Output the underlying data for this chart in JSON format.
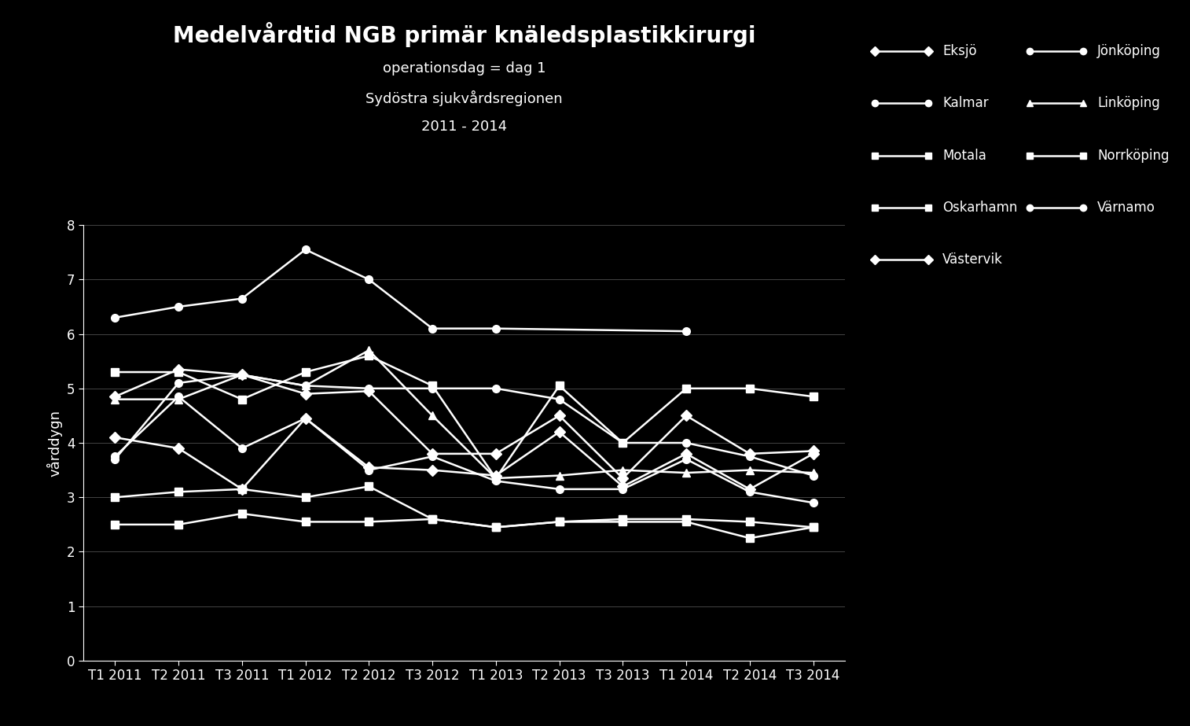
{
  "title": "Medelvårdtid NGB primär knäledsplastikkirurgi",
  "subtitle1": "operationsdag = dag 1",
  "subtitle2": "Sydöstra sjukvårdsregionen",
  "subtitle3": "2011 - 2014",
  "ylabel": "vårddygn",
  "background_color": "#000000",
  "text_color": "#ffffff",
  "x_labels": [
    "T1 2011",
    "T2 2011",
    "T3 2011",
    "T1 2012",
    "T2 2012",
    "T3 2012",
    "T1 2013",
    "T2 2013",
    "T3 2013",
    "T1 2014",
    "T2 2014",
    "T3 2014"
  ],
  "ylim": [
    0,
    8
  ],
  "yticks": [
    0,
    1,
    2,
    3,
    4,
    5,
    6,
    7,
    8
  ],
  "series": [
    {
      "name": "Eksjö",
      "values": [
        4.1,
        3.9,
        3.15,
        4.45,
        3.55,
        3.5,
        3.4,
        4.2,
        3.2,
        3.8,
        3.15,
        3.8
      ],
      "marker": "D"
    },
    {
      "name": "Jönköping",
      "values": [
        6.3,
        6.5,
        6.65,
        7.55,
        7.0,
        6.1,
        6.1,
        null,
        null,
        6.05,
        null,
        null
      ],
      "marker": "o"
    },
    {
      "name": "Kalmar",
      "values": [
        3.7,
        5.1,
        5.25,
        5.05,
        5.0,
        5.0,
        5.0,
        4.8,
        4.0,
        4.0,
        3.75,
        3.4
      ],
      "marker": "o"
    },
    {
      "name": "Linköping",
      "values": [
        4.8,
        4.8,
        5.25,
        5.05,
        5.7,
        4.5,
        3.35,
        3.4,
        3.5,
        3.45,
        3.5,
        3.45
      ],
      "marker": "^"
    },
    {
      "name": "Motala",
      "values": [
        2.5,
        2.5,
        2.7,
        2.55,
        2.55,
        2.6,
        2.45,
        2.55,
        2.55,
        2.55,
        2.25,
        2.45
      ],
      "marker": "s"
    },
    {
      "name": "Norrköping",
      "values": [
        5.3,
        5.3,
        4.8,
        5.3,
        5.6,
        5.05,
        3.35,
        5.05,
        4.0,
        5.0,
        5.0,
        4.85
      ],
      "marker": "s"
    },
    {
      "name": "Oskarhamn",
      "values": [
        3.0,
        3.1,
        3.15,
        3.0,
        3.2,
        2.6,
        2.45,
        2.55,
        2.6,
        2.6,
        2.55,
        2.45
      ],
      "marker": "s"
    },
    {
      "name": "Värnamo",
      "values": [
        3.75,
        4.85,
        3.9,
        4.45,
        3.5,
        3.75,
        3.3,
        3.15,
        3.15,
        3.7,
        3.1,
        2.9
      ],
      "marker": "o"
    },
    {
      "name": "Västervik",
      "values": [
        4.85,
        5.35,
        5.25,
        4.9,
        4.95,
        3.8,
        3.8,
        4.5,
        3.35,
        4.5,
        3.8,
        3.85
      ],
      "marker": "D"
    }
  ],
  "legend_order": [
    "Eksjö",
    "Jönköping",
    "Kalmar",
    "Linköping",
    "Motala",
    "Norrköping",
    "Oskarhamn",
    "Värnamo",
    "Västervik"
  ],
  "legend_ncol": 2,
  "title_fontsize": 20,
  "subtitle_fontsize": 13,
  "axis_fontsize": 12,
  "ylabel_fontsize": 13,
  "legend_fontsize": 12,
  "linewidth": 1.8,
  "markersize": 7,
  "grid_color": "#444444"
}
